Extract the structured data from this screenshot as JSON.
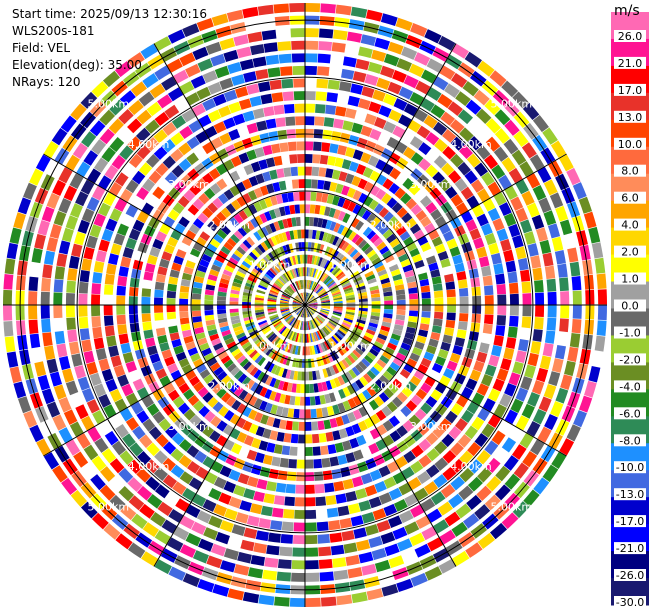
{
  "info": {
    "start_time": "Start time: 2025/09/13 12:30:16",
    "instrument": "WLS200s-181",
    "field": "Field: VEL",
    "elevation": "Elevation(deg): 35.00",
    "nrays": "NRays: 120"
  },
  "chart_data": {
    "type": "heatmap",
    "projection": "polar PPI",
    "field": "VEL",
    "n_rays": 120,
    "n_gates": 24,
    "range_rings_km": [
      1.0,
      2.0,
      3.0,
      4.0,
      5.0
    ],
    "ring_labels": [
      "1.00km",
      "2.00km",
      "3.00km",
      "4.00km",
      "5.00km"
    ],
    "radial_spokes_deg": [
      0,
      30,
      60,
      90,
      120,
      150,
      180,
      210,
      240,
      270,
      300,
      330
    ],
    "colorbar": {
      "unit": "m/s",
      "ticks": [
        "26.0",
        "21.0",
        "17.0",
        "13.0",
        "10.0",
        "8.0",
        "6.0",
        "4.0",
        "2.0",
        "1.0",
        "0.0",
        "-1.0",
        "-2.0",
        "-4.0",
        "-6.0",
        "-8.0",
        "-10.0",
        "-13.0",
        "-17.0",
        "-21.0",
        "-26.0",
        "-30.0"
      ],
      "colors": [
        "#ff69b4",
        "#ff1493",
        "#ff0000",
        "#e8322a",
        "#ff4500",
        "#ff6a3d",
        "#ff8c5a",
        "#ffa500",
        "#ffd700",
        "#ffff00",
        "#a0a0a0",
        "#696969",
        "#9acd32",
        "#6b8e23",
        "#228b22",
        "#2e8b57",
        "#1e90ff",
        "#4169e1",
        "#0000cd",
        "#0000ff",
        "#000080",
        "#191970"
      ]
    }
  }
}
